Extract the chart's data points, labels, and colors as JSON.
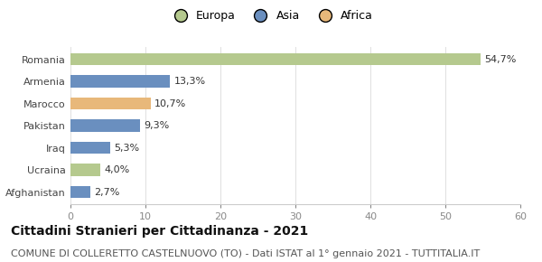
{
  "categories": [
    "Romania",
    "Armenia",
    "Marocco",
    "Pakistan",
    "Iraq",
    "Ucraina",
    "Afghanistan"
  ],
  "values": [
    54.7,
    13.3,
    10.7,
    9.3,
    5.3,
    4.0,
    2.7
  ],
  "labels": [
    "54,7%",
    "13,3%",
    "10,7%",
    "9,3%",
    "5,3%",
    "4,0%",
    "2,7%"
  ],
  "colors": [
    "#b5c98e",
    "#6a8fbf",
    "#e8b87a",
    "#6a8fbf",
    "#6a8fbf",
    "#b5c98e",
    "#6a8fbf"
  ],
  "legend_items": [
    {
      "label": "Europa",
      "color": "#b5c98e"
    },
    {
      "label": "Asia",
      "color": "#6a8fbf"
    },
    {
      "label": "Africa",
      "color": "#e8b87a"
    }
  ],
  "xlim": [
    0,
    60
  ],
  "xticks": [
    0,
    10,
    20,
    30,
    40,
    50,
    60
  ],
  "title": "Cittadini Stranieri per Cittadinanza - 2021",
  "subtitle": "COMUNE DI COLLERETTO CASTELNUOVO (TO) - Dati ISTAT al 1° gennaio 2021 - TUTTITALIA.IT",
  "background_color": "#ffffff",
  "bar_height": 0.55,
  "title_fontsize": 10,
  "subtitle_fontsize": 8,
  "label_fontsize": 8,
  "tick_fontsize": 8,
  "legend_fontsize": 9
}
